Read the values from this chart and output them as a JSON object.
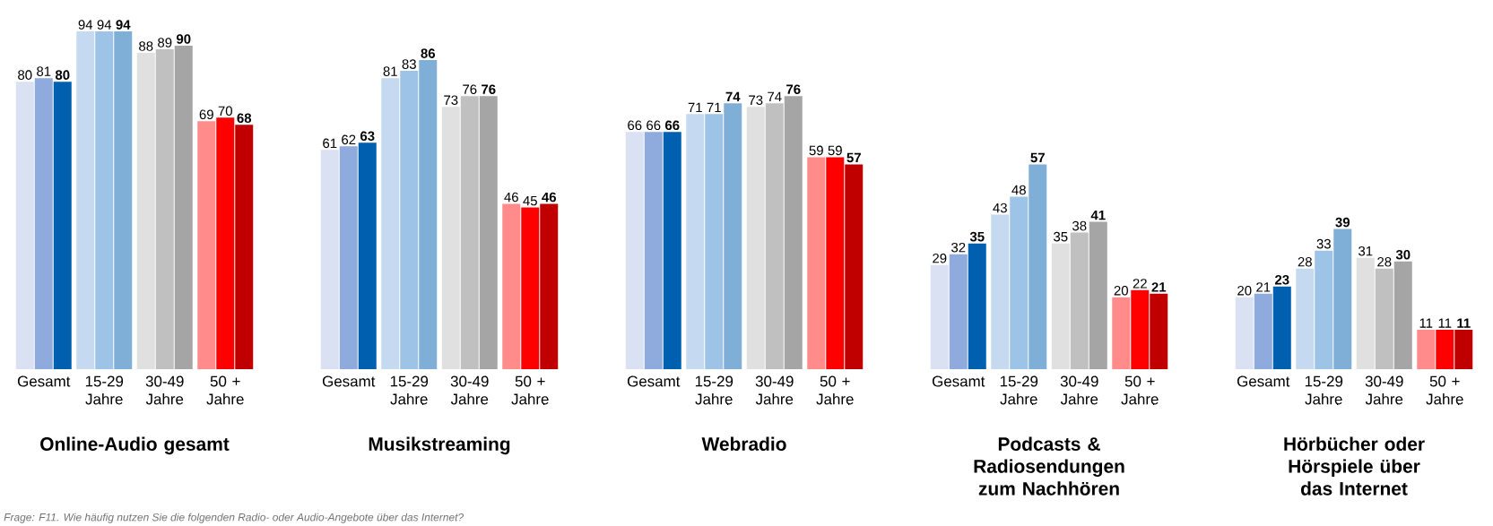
{
  "chart_data": [
    {
      "type": "bar",
      "title": "Online-Audio gesamt",
      "categories": [
        "Gesamt",
        "15-29 Jahre",
        "30-49 Jahre",
        "50 + Jahre"
      ],
      "data_labels": true,
      "annotations": [
        "Frage: F11. Wie häufig nutzen Sie die folgenden Radio- oder Audio-Angebote über das Internet?"
      ],
      "series": [
        {
          "colors": [
            "#dae1f3",
            "#c5daf0",
            "#e0e0e0",
            "#ff8b8b"
          ],
          "values": [
            80,
            94,
            88,
            69
          ]
        },
        {
          "colors": [
            "#8faadc",
            "#9dc3e6",
            "#c0c0c0",
            "#ff0000"
          ],
          "values": [
            81,
            94,
            89,
            70
          ]
        },
        {
          "colors": [
            "#0060b0",
            "#7fafd7",
            "#a5a5a5",
            "#c00000"
          ],
          "values": [
            80,
            94,
            90,
            68
          ]
        }
      ]
    },
    {
      "type": "bar",
      "title": "Musikstreaming",
      "categories": [
        "Gesamt",
        "15-29 Jahre",
        "30-49 Jahre",
        "50 + Jahre"
      ],
      "data_labels": true,
      "series": [
        {
          "colors": [
            "#dae1f3",
            "#c5daf0",
            "#e0e0e0",
            "#ff8b8b"
          ],
          "values": [
            61,
            81,
            73,
            46
          ]
        },
        {
          "colors": [
            "#8faadc",
            "#9dc3e6",
            "#c0c0c0",
            "#ff0000"
          ],
          "values": [
            62,
            83,
            76,
            45
          ]
        },
        {
          "colors": [
            "#0060b0",
            "#7fafd7",
            "#a5a5a5",
            "#c00000"
          ],
          "values": [
            63,
            86,
            76,
            46
          ]
        }
      ]
    },
    {
      "type": "bar",
      "title": "Webradio",
      "categories": [
        "Gesamt",
        "15-29 Jahre",
        "30-49 Jahre",
        "50 + Jahre"
      ],
      "data_labels": true,
      "series": [
        {
          "colors": [
            "#dae1f3",
            "#c5daf0",
            "#e0e0e0",
            "#ff8b8b"
          ],
          "values": [
            66,
            71,
            73,
            59
          ]
        },
        {
          "colors": [
            "#8faadc",
            "#9dc3e6",
            "#c0c0c0",
            "#ff0000"
          ],
          "values": [
            66,
            71,
            74,
            59
          ]
        },
        {
          "colors": [
            "#0060b0",
            "#7fafd7",
            "#a5a5a5",
            "#c00000"
          ],
          "values": [
            66,
            74,
            76,
            57
          ]
        }
      ]
    },
    {
      "type": "bar",
      "title": "Podcasts & Radiosendungen zum Nachhören",
      "categories": [
        "Gesamt",
        "15-29 Jahre",
        "30-49 Jahre",
        "50 + Jahre"
      ],
      "data_labels": true,
      "series": [
        {
          "colors": [
            "#dae1f3",
            "#c5daf0",
            "#e0e0e0",
            "#ff8b8b"
          ],
          "values": [
            29,
            43,
            35,
            20
          ]
        },
        {
          "colors": [
            "#8faadc",
            "#9dc3e6",
            "#c0c0c0",
            "#ff0000"
          ],
          "values": [
            32,
            48,
            38,
            22
          ]
        },
        {
          "colors": [
            "#0060b0",
            "#7fafd7",
            "#a5a5a5",
            "#c00000"
          ],
          "values": [
            35,
            57,
            41,
            21
          ]
        }
      ]
    },
    {
      "type": "bar",
      "title": "Hörbücher oder Hörspiele über das Internet",
      "categories": [
        "Gesamt",
        "15-29 Jahre",
        "30-49 Jahre",
        "50 + Jahre"
      ],
      "data_labels": true,
      "series": [
        {
          "colors": [
            "#dae1f3",
            "#c5daf0",
            "#e0e0e0",
            "#ff8b8b"
          ],
          "values": [
            20,
            28,
            31,
            11
          ]
        },
        {
          "colors": [
            "#8faadc",
            "#9dc3e6",
            "#c0c0c0",
            "#ff0000"
          ],
          "values": [
            21,
            33,
            28,
            11
          ]
        },
        {
          "colors": [
            "#0060b0",
            "#7fafd7",
            "#a5a5a5",
            "#c00000"
          ],
          "values": [
            23,
            39,
            30,
            11
          ]
        }
      ]
    }
  ]
}
